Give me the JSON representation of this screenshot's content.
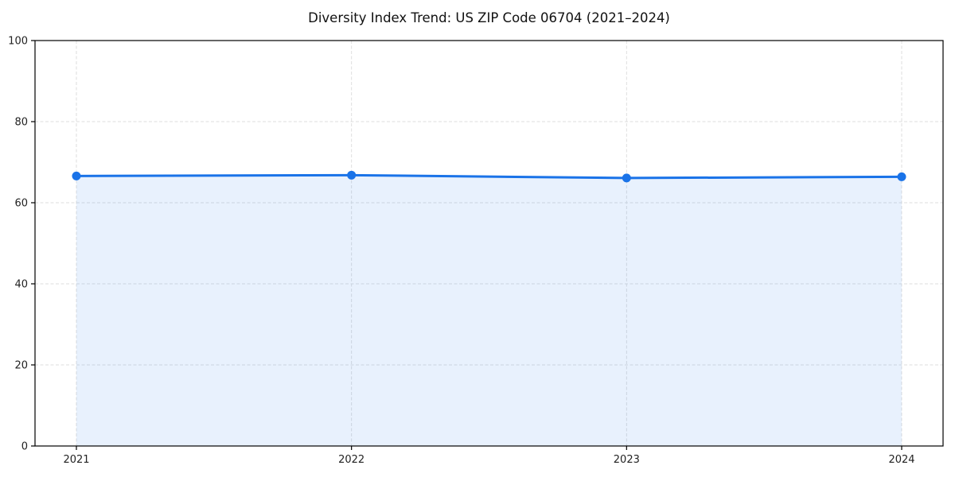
{
  "chart_data": {
    "type": "area",
    "title": "Diversity Index Trend: US ZIP Code 06704 (2021–2024)",
    "categories": [
      "2021",
      "2022",
      "2023",
      "2024"
    ],
    "series": [
      {
        "name": "Diversity Index",
        "values": [
          66.6,
          66.8,
          66.1,
          66.4
        ]
      }
    ],
    "xlabel": "",
    "ylabel": "",
    "ylim": [
      0,
      100
    ],
    "y_ticks": [
      0,
      20,
      40,
      60,
      80,
      100
    ],
    "grid": "both-axes, dashed",
    "legend_position": "none",
    "colors": {
      "line": "#1a73e8",
      "marker": "#1a73e8",
      "fill": "#1a73e8",
      "fill_opacity": 0.1,
      "grid": "#dedede",
      "axis": "#000000",
      "tick_label": "#222222"
    }
  }
}
